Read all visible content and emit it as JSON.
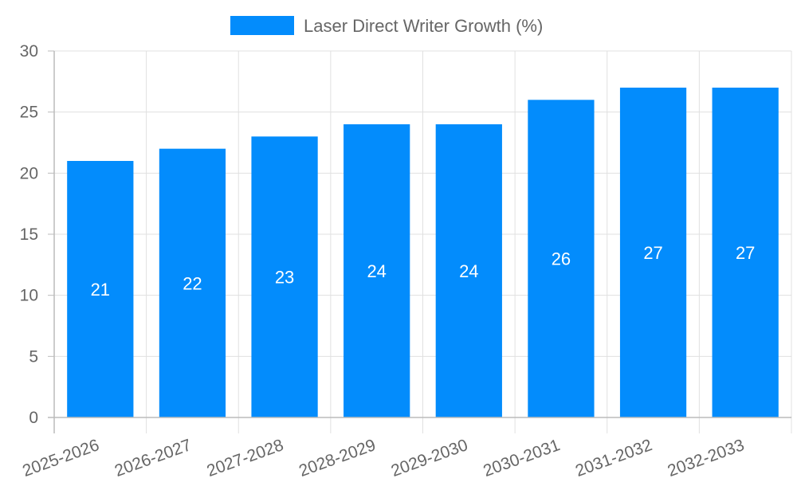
{
  "chart_data": {
    "type": "bar",
    "title": "",
    "legend": {
      "label": "Laser Direct Writer Growth (%)",
      "placement": "top-center"
    },
    "categories": [
      "2025-2026",
      "2026-2027",
      "2027-2028",
      "2028-2029",
      "2029-2030",
      "2030-2031",
      "2031-2032",
      "2032-2033"
    ],
    "series": [
      {
        "name": "Laser Direct Writer Growth (%)",
        "values": [
          21,
          22,
          23,
          24,
          24,
          26,
          27,
          27
        ],
        "color": "#038cfc"
      }
    ],
    "xlabel": "",
    "ylabel": "",
    "ylim": [
      0,
      30
    ],
    "yticks": [
      0,
      5,
      10,
      15,
      20,
      25,
      30
    ],
    "grid": true,
    "data_labels": true
  }
}
